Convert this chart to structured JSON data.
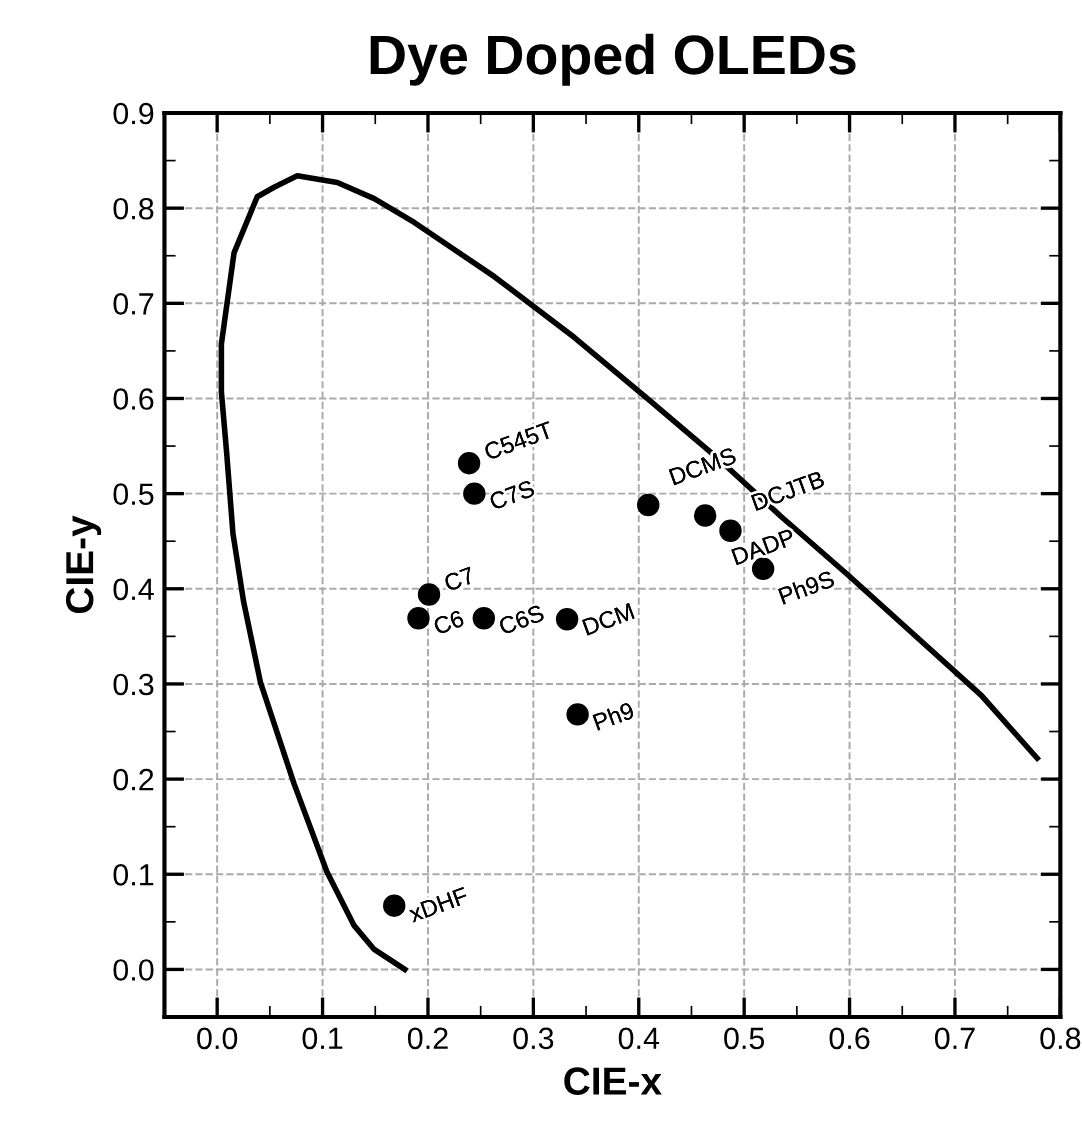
{
  "chart_data": {
    "type": "scatter",
    "title": "Dye Doped OLEDs",
    "xlabel": "CIE-x",
    "ylabel": "CIE-y",
    "xlim": [
      -0.05,
      0.8
    ],
    "ylim": [
      -0.05,
      0.9
    ],
    "xticks": [
      {
        "value": 0,
        "label": "0.0"
      },
      0.1,
      0.2,
      0.3,
      0.4,
      0.5,
      0.6,
      0.7,
      0.8
    ],
    "yticks": [
      {
        "value": 0,
        "label": "0.0"
      },
      0.1,
      0.2,
      0.3,
      0.4,
      0.5,
      0.6,
      0.7,
      0.8,
      0.9
    ],
    "grid": true,
    "series": [
      {
        "type": "line",
        "color": "#000000",
        "marker": "none",
        "line_style": "solid",
        "x": [
          0.178,
          0.149,
          0.13,
          0.104,
          0.073,
          0.041,
          0.025,
          0.015,
          0.009,
          0.004,
          0.004,
          0.016,
          0.038,
          0.054,
          0.076,
          0.114,
          0.149,
          0.187,
          0.263,
          0.339,
          0.408,
          0.472,
          0.535,
          0.598,
          0.661,
          0.725,
          0.778
        ],
        "values": [
          0.0,
          0.021,
          0.046,
          0.103,
          0.195,
          0.302,
          0.387,
          0.458,
          0.543,
          0.607,
          0.657,
          0.753,
          0.812,
          0.822,
          0.834,
          0.827,
          0.81,
          0.785,
          0.728,
          0.664,
          0.6,
          0.54,
          0.476,
          0.415,
          0.352,
          0.288,
          0.222
        ]
      },
      {
        "type": "scatter",
        "color": "#000000",
        "marker": "circle",
        "x": [
          0.239,
          0.244,
          0.201,
          0.191,
          0.253,
          0.332,
          0.342,
          0.409,
          0.463,
          0.487,
          0.518,
          0.168
        ],
        "values": [
          0.532,
          0.5,
          0.394,
          0.369,
          0.369,
          0.368,
          0.268,
          0.488,
          0.477,
          0.461,
          0.421,
          0.067
        ]
      }
    ],
    "annotations": [
      {
        "text": "C545T",
        "x": 0.239,
        "y": 0.532
      },
      {
        "text": "C7S",
        "x": 0.244,
        "y": 0.5
      },
      {
        "text": "C7",
        "x": 0.201,
        "y": 0.394
      },
      {
        "text": "C6",
        "x": 0.191,
        "y": 0.369
      },
      {
        "text": "C6S",
        "x": 0.253,
        "y": 0.369
      },
      {
        "text": "DCM",
        "x": 0.332,
        "y": 0.368
      },
      {
        "text": "Ph9",
        "x": 0.342,
        "y": 0.268
      },
      {
        "text": "DCMS",
        "x": 0.409,
        "y": 0.488
      },
      {
        "text": "DADP",
        "x": 0.463,
        "y": 0.477
      },
      {
        "text": "DCJTB",
        "x": 0.487,
        "y": 0.461
      },
      {
        "text": "Ph9S",
        "x": 0.518,
        "y": 0.421
      },
      {
        "text": "xDHF",
        "x": 0.168,
        "y": 0.067
      }
    ]
  }
}
